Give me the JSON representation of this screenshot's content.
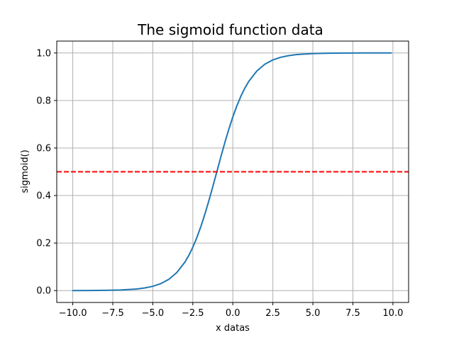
{
  "chart_data": {
    "type": "line",
    "title": "The sigmoid function data",
    "xlabel": "x datas",
    "ylabel": "sigmoid()",
    "xlim": [
      -11.0,
      10.98
    ],
    "ylim": [
      -0.05,
      1.05
    ],
    "grid": true,
    "x_ticks": [
      -10.0,
      -7.5,
      -5.0,
      -2.5,
      0.0,
      2.5,
      5.0,
      7.5,
      10.0
    ],
    "x_tick_labels": [
      "−10.0",
      "−7.5",
      "−5.0",
      "−2.5",
      "0.0",
      "2.5",
      "5.0",
      "7.5",
      "10.0"
    ],
    "y_ticks": [
      0.0,
      0.2,
      0.4,
      0.6,
      0.8,
      1.0
    ],
    "y_tick_labels": [
      "0.0",
      "0.2",
      "0.4",
      "0.6",
      "0.8",
      "1.0"
    ],
    "series": [
      {
        "color": "#1f77b4",
        "style": "solid",
        "x": [
          -10.0,
          -9.0,
          -8.0,
          -7.0,
          -6.0,
          -5.5,
          -5.0,
          -4.5,
          -4.0,
          -3.5,
          -3.0,
          -2.75,
          -2.5,
          -2.25,
          -2.0,
          -1.75,
          -1.5,
          -1.25,
          -1.0,
          -0.75,
          -0.5,
          -0.25,
          0.0,
          0.25,
          0.5,
          0.75,
          1.0,
          1.5,
          2.0,
          2.5,
          3.0,
          3.5,
          4.0,
          5.0,
          6.0,
          7.0,
          8.0,
          9.0,
          9.9
        ],
        "y": [
          0.0001,
          0.0003,
          0.0009,
          0.0025,
          0.0067,
          0.011,
          0.018,
          0.0293,
          0.0474,
          0.0759,
          0.1192,
          0.148,
          0.1824,
          0.2227,
          0.2689,
          0.3208,
          0.3775,
          0.4378,
          0.5,
          0.5622,
          0.6225,
          0.6792,
          0.7311,
          0.7773,
          0.8176,
          0.852,
          0.8808,
          0.9241,
          0.9526,
          0.9707,
          0.982,
          0.989,
          0.9933,
          0.9975,
          0.9991,
          0.9997,
          0.9999,
          1.0,
          1.0
        ]
      },
      {
        "color": "#ff0000",
        "style": "dashed",
        "x": [
          -11.0,
          10.98
        ],
        "y": [
          0.5,
          0.5
        ]
      }
    ]
  }
}
